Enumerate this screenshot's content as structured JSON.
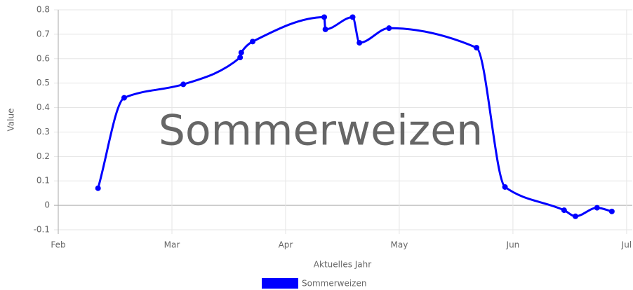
{
  "chart_data": {
    "type": "line",
    "title": "Sommerweizen",
    "x_label": "Aktuelles Jahr",
    "y_label": "Value",
    "x": [
      2.35,
      2.58,
      3.1,
      3.6,
      3.61,
      3.71,
      4.34,
      4.35,
      4.59,
      4.65,
      4.91,
      5.68,
      5.93,
      6.45,
      6.55,
      6.74,
      6.87
    ],
    "series": [
      {
        "name": "Sommerweizen",
        "color": "#0000ff",
        "values": [
          0.07,
          0.44,
          0.495,
          0.605,
          0.625,
          0.67,
          0.77,
          0.72,
          0.77,
          0.665,
          0.725,
          0.645,
          0.075,
          -0.02,
          -0.045,
          -0.01,
          -0.025
        ]
      }
    ],
    "xlim": [
      2,
      7.05
    ],
    "xticks": [
      {
        "value": 2,
        "label": "Feb"
      },
      {
        "value": 3,
        "label": "Mar"
      },
      {
        "value": 4,
        "label": "Apr"
      },
      {
        "value": 5,
        "label": "May"
      },
      {
        "value": 6,
        "label": "Jun"
      },
      {
        "value": 7,
        "label": "Jul"
      }
    ],
    "ylim": [
      -0.1,
      0.8
    ],
    "yticks": [
      -0.1,
      0,
      0.1,
      0.2,
      0.3,
      0.4,
      0.5,
      0.6,
      0.7,
      0.8
    ],
    "grid": true,
    "legend": "bottom"
  }
}
